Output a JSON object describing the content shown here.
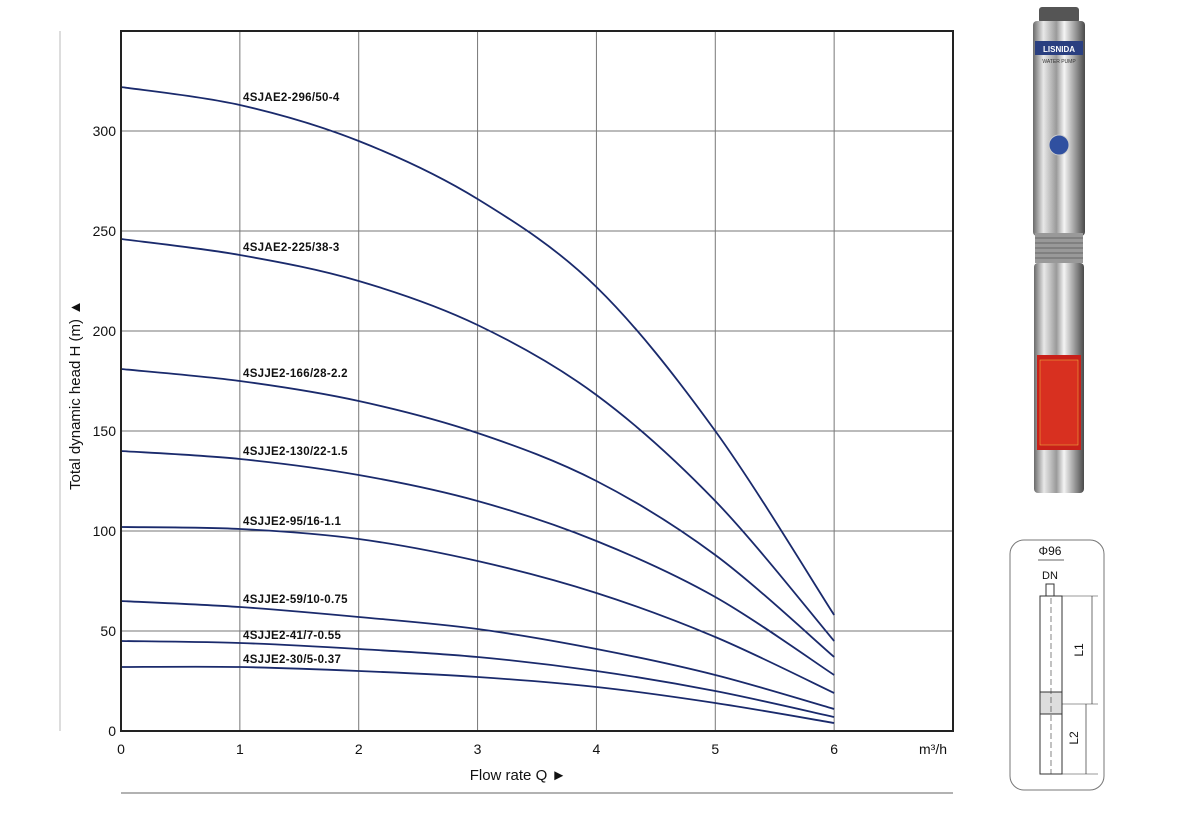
{
  "chart_data": {
    "type": "line",
    "title": "",
    "xlabel": "Flow rate Q ►",
    "ylabel": "Total dynamic head H (m) ▲",
    "x_unit": "m³/h",
    "xlim": [
      0,
      7
    ],
    "ylim": [
      0,
      350
    ],
    "x_ticks": [
      "0",
      "1",
      "2",
      "3",
      "4",
      "5",
      "6"
    ],
    "y_ticks": [
      "0",
      "50",
      "100",
      "150",
      "200",
      "250",
      "300"
    ],
    "grid": true,
    "x": [
      0,
      1,
      2,
      3,
      4,
      5,
      6
    ],
    "series": [
      {
        "name": "4SJAE2-296/50-4",
        "values": [
          322,
          313,
          295,
          266,
          222,
          150,
          58
        ]
      },
      {
        "name": "4SJAE2-225/38-3",
        "values": [
          246,
          238,
          225,
          203,
          168,
          115,
          45
        ]
      },
      {
        "name": "4SJJE2-166/28-2.2",
        "values": [
          181,
          175,
          165,
          149,
          125,
          88,
          37
        ]
      },
      {
        "name": "4SJJE2-130/22-1.5",
        "values": [
          140,
          136,
          128,
          115,
          95,
          67,
          28
        ]
      },
      {
        "name": "4SJJE2-95/16-1.1",
        "values": [
          102,
          101,
          96,
          85,
          69,
          47,
          19
        ]
      },
      {
        "name": "4SJJE2-59/10-0.75",
        "values": [
          65,
          62,
          57,
          51,
          41,
          28,
          11
        ]
      },
      {
        "name": "4SJJE2-41/7-0.55",
        "values": [
          45,
          44,
          41,
          37,
          30,
          20,
          7
        ]
      },
      {
        "name": "4SJJE2-30/5-0.37",
        "values": [
          32,
          32,
          30,
          27,
          22,
          14,
          4
        ]
      }
    ],
    "colors": {
      "curve": "#1a2a6c",
      "grid": "#777777",
      "border": "#222222"
    }
  },
  "product": {
    "brand_logo": "LISNIDA",
    "logo_subtitle": "WATER PUMP",
    "drawing": {
      "diameter": "Φ96",
      "outlet": "DN",
      "length1": "L1",
      "length2": "L2"
    }
  }
}
